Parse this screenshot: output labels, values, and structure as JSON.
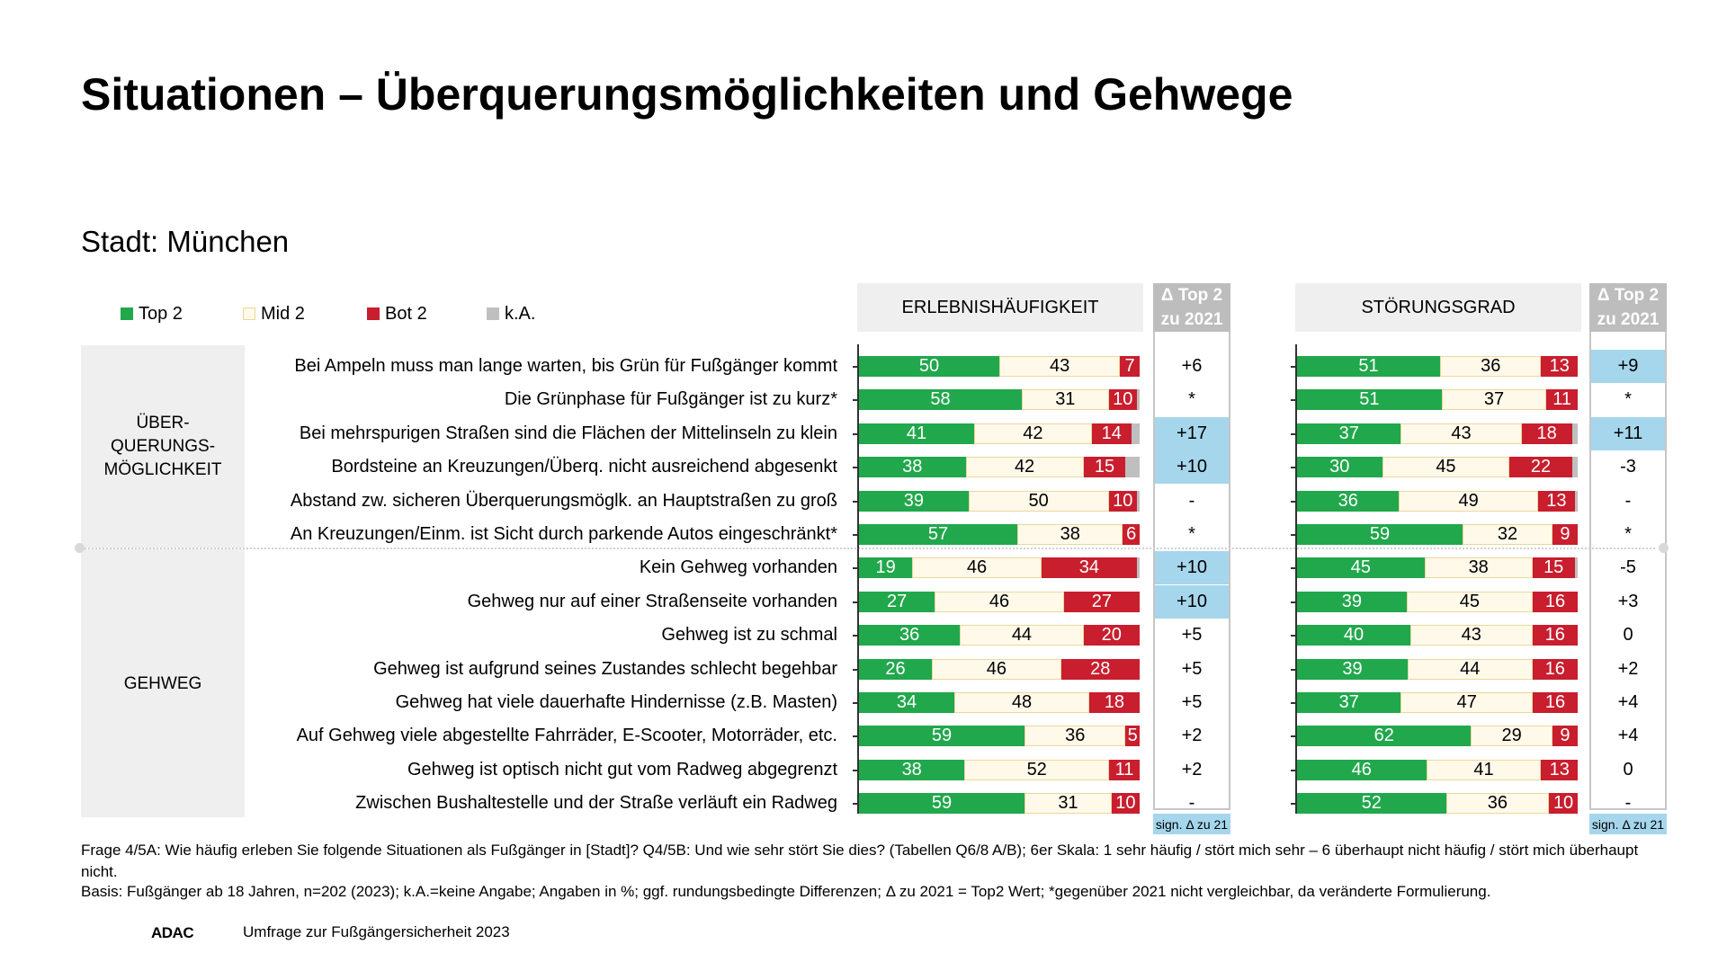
{
  "title": "Situationen – Überquerungsmöglichkeiten und Gehwege",
  "subtitle": "Stadt: München",
  "legend": [
    {
      "label": "Top 2",
      "color": "#21a84c"
    },
    {
      "label": "Mid 2",
      "color": "#fff9ea"
    },
    {
      "label": "Bot 2",
      "color": "#c81e2e"
    },
    {
      "label": "k.A.",
      "color": "#bfbfbf"
    }
  ],
  "headers": {
    "left": "ERLEBNISHÄUFIGKEIT",
    "right": "STÖRUNGSGRAD",
    "delta_line1": "Δ Top 2",
    "delta_line2": "zu 2021",
    "delta_footnote": "sign. Δ zu 21"
  },
  "groups": [
    {
      "label_lines": [
        "ÜBER-",
        "QUERUNGS-",
        "MÖGLICHKEIT"
      ]
    },
    {
      "label_lines": [
        "GEHWEG"
      ]
    }
  ],
  "chart_data": {
    "type": "bar",
    "subtype": "stacked-horizontal-100",
    "title": "Situationen – Überquerungsmöglichkeiten und Gehwege",
    "subtitle": "Stadt: München",
    "series_names": [
      "Top 2",
      "Mid 2",
      "Bot 2",
      "k.A."
    ],
    "categories": [
      "Bei Ampeln muss man lange warten, bis Grün für Fußgänger kommt",
      "Die Grünphase für Fußgänger ist zu kurz*",
      "Bei mehrspurigen Straßen sind die Flächen der Mittelinseln zu klein",
      "Bordsteine an Kreuzungen/Überq. nicht ausreichend abgesenkt",
      "Abstand zw. sicheren Überquerungsmöglk. an Hauptstraßen zu groß",
      "An Kreuzungen/Einm. ist Sicht durch parkende Autos eingeschränkt*",
      "Kein Gehweg vorhanden",
      "Gehweg nur auf einer Straßenseite vorhanden",
      "Gehweg ist zu schmal",
      "Gehweg ist aufgrund seines Zustandes schlecht begehbar",
      "Gehweg hat viele dauerhafte Hindernisse (z.B. Masten)",
      "Auf Gehweg viele abgestellte Fahrräder, E-Scooter, Motorräder, etc.",
      "Gehweg ist optisch nicht gut vom Radweg abgegrenzt",
      "Zwischen Bushaltestelle und der Straße verläuft ein Radweg"
    ],
    "category_group": [
      0,
      0,
      0,
      0,
      0,
      0,
      1,
      1,
      1,
      1,
      1,
      1,
      1,
      1
    ],
    "panels": [
      {
        "name": "ERLEBNISHÄUFIGKEIT",
        "rows": [
          [
            50,
            43,
            7,
            0
          ],
          [
            58,
            31,
            10,
            1
          ],
          [
            41,
            42,
            14,
            3
          ],
          [
            38,
            42,
            15,
            5
          ],
          [
            39,
            50,
            10,
            1
          ],
          [
            57,
            38,
            6,
            0
          ],
          [
            19,
            46,
            34,
            1
          ],
          [
            27,
            46,
            27,
            0
          ],
          [
            36,
            44,
            20,
            0
          ],
          [
            26,
            46,
            28,
            0
          ],
          [
            34,
            48,
            18,
            0
          ],
          [
            59,
            36,
            5,
            0
          ],
          [
            38,
            52,
            11,
            0
          ],
          [
            59,
            31,
            10,
            0
          ]
        ],
        "delta": [
          "+6",
          "*",
          "+17",
          "+10",
          "-",
          "*",
          "+10",
          "+10",
          "+5",
          "+5",
          "+5",
          "+2",
          "+2",
          "-"
        ],
        "delta_sig": [
          false,
          false,
          true,
          true,
          false,
          false,
          true,
          true,
          false,
          false,
          false,
          false,
          false,
          false
        ]
      },
      {
        "name": "STÖRUNGSGRAD",
        "rows": [
          [
            51,
            36,
            13,
            0
          ],
          [
            51,
            37,
            11,
            0
          ],
          [
            37,
            43,
            18,
            2
          ],
          [
            30,
            45,
            22,
            2
          ],
          [
            36,
            49,
            13,
            1
          ],
          [
            59,
            32,
            9,
            0
          ],
          [
            45,
            38,
            15,
            1
          ],
          [
            39,
            45,
            16,
            0
          ],
          [
            40,
            43,
            16,
            0
          ],
          [
            39,
            44,
            16,
            0
          ],
          [
            37,
            47,
            16,
            0
          ],
          [
            62,
            29,
            9,
            0
          ],
          [
            46,
            41,
            13,
            0
          ],
          [
            52,
            36,
            10,
            0
          ]
        ],
        "delta": [
          "+9",
          "*",
          "+11",
          "-3",
          "-",
          "*",
          "-5",
          "+3",
          "0",
          "+2",
          "+4",
          "+4",
          "0",
          "-"
        ],
        "delta_sig": [
          true,
          false,
          true,
          false,
          false,
          false,
          false,
          false,
          false,
          false,
          false,
          false,
          false,
          false
        ]
      }
    ],
    "legend_position": "top-left",
    "xlim": [
      0,
      100
    ]
  },
  "footer": {
    "question": "Frage 4/5A: Wie häufig erleben Sie folgende Situationen als Fußgänger in [Stadt]? Q4/5B: Und wie sehr stört Sie dies? (Tabellen Q6/8 A/B); 6er Skala: 1 sehr häufig / stört mich sehr  – 6 überhaupt nicht häufig / stört mich überhaupt nicht.",
    "basis": "Basis: Fußgänger ab 18 Jahren, n=202 (2023); k.A.=keine Angabe; Angaben in %; ggf. rundungsbedingte Differenzen; Δ zu 2021 = Top2 Wert; *gegenüber 2021 nicht vergleichbar, da veränderte Formulierung.",
    "brand": "ADAC",
    "survey": "Umfrage zur Fußgängersicherheit 2023"
  }
}
